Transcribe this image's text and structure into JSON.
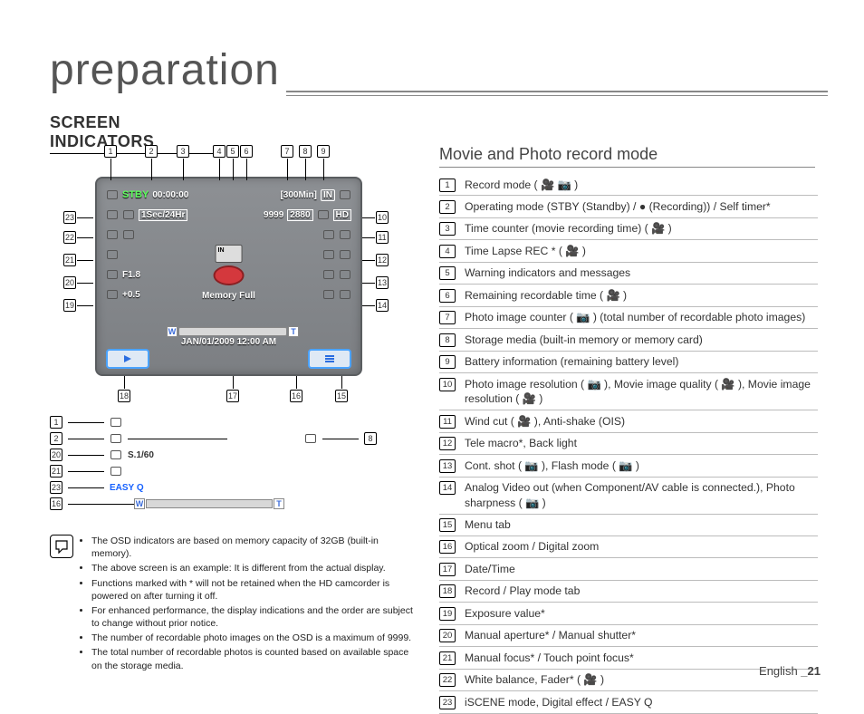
{
  "page": {
    "title": "preparation",
    "section_heading": "SCREEN INDICATORS",
    "right_heading": "Movie and Photo record mode",
    "footer_lang": "English",
    "footer_page": "_21"
  },
  "lcd": {
    "stby": "STBY",
    "time_counter": "00:00:00",
    "remain_time": "[300Min]",
    "timelapse": "1Sec/24Hr",
    "photo_counter": "9999",
    "memfull": "Memory Full",
    "aperture": "F1.8",
    "ev": "+0.5",
    "date_time": "JAN/01/2009 12:00 AM",
    "zoom_w": "W",
    "zoom_t": "T",
    "res_badge": "2880",
    "hd_badge": "HD",
    "in_badge": "IN"
  },
  "mini": {
    "shutter": "S.1/60",
    "easyq": "EASY Q",
    "zoom_w": "W",
    "zoom_t": "T"
  },
  "top_callouts": [
    "1",
    "2",
    "3",
    "4",
    "5",
    "6",
    "7",
    "8",
    "9"
  ],
  "right_callouts": [
    "10",
    "11",
    "12",
    "13",
    "14"
  ],
  "left_callouts": [
    "23",
    "22",
    "21",
    "20",
    "19"
  ],
  "bottom_callouts": [
    "18",
    "17",
    "16",
    "15"
  ],
  "mini_nums": [
    "1",
    "2",
    "20",
    "21",
    "23",
    "16",
    "8"
  ],
  "legend": [
    {
      "n": "1",
      "t": "Record mode ( 🎥 📷 )"
    },
    {
      "n": "2",
      "t": "Operating mode (STBY (Standby) / ● (Recording)) / Self timer*"
    },
    {
      "n": "3",
      "t": "Time counter (movie recording time) ( 🎥 )"
    },
    {
      "n": "4",
      "t": "Time Lapse REC * ( 🎥 )"
    },
    {
      "n": "5",
      "t": "Warning indicators and messages"
    },
    {
      "n": "6",
      "t": "Remaining recordable time ( 🎥 )"
    },
    {
      "n": "7",
      "t": "Photo image counter ( 📷 )\n(total number of recordable photo images)"
    },
    {
      "n": "8",
      "t": "Storage media (built-in memory or memory card)"
    },
    {
      "n": "9",
      "t": "Battery information (remaining battery level)"
    },
    {
      "n": "10",
      "t": "Photo image resolution ( 📷 ), Movie image quality ( 🎥 ), Movie image resolution ( 🎥 )"
    },
    {
      "n": "11",
      "t": "Wind cut ( 🎥 ), Anti-shake (OIS)"
    },
    {
      "n": "12",
      "t": "Tele macro*, Back light"
    },
    {
      "n": "13",
      "t": "Cont. shot ( 📷 ), Flash mode ( 📷 )"
    },
    {
      "n": "14",
      "t": "Analog Video out (when Component/AV cable is connected.), Photo sharpness ( 📷 )"
    },
    {
      "n": "15",
      "t": "Menu tab"
    },
    {
      "n": "16",
      "t": "Optical zoom / Digital zoom"
    },
    {
      "n": "17",
      "t": "Date/Time"
    },
    {
      "n": "18",
      "t": "Record / Play mode tab"
    },
    {
      "n": "19",
      "t": "Exposure value*"
    },
    {
      "n": "20",
      "t": "Manual aperture* / Manual shutter*"
    },
    {
      "n": "21",
      "t": "Manual focus* / Touch point focus*"
    },
    {
      "n": "22",
      "t": "White balance, Fader* ( 🎥 )"
    },
    {
      "n": "23",
      "t": "iSCENE mode, Digital effect / EASY Q"
    }
  ],
  "notes": [
    "The OSD indicators are based on memory capacity of 32GB (built-in memory).",
    "The above screen is an example: It is different from the actual display.",
    "Functions marked with * will not be retained when the HD camcorder is powered on after turning it off.",
    "For enhanced performance, the display indications and the order are subject to change without prior notice.",
    "The number of recordable photo images on the OSD is a maximum of 9999.",
    "The total number of recordable photos is counted based on available space on the storage media."
  ],
  "colors": {
    "stby_green": "#5cff5c",
    "lcd_bg_top": "#8d9094",
    "lcd_bg_bot": "#7c7f83",
    "record_red": "#d4383d",
    "btn_border": "#4aa3ff",
    "easyq_blue": "#1661ff"
  }
}
